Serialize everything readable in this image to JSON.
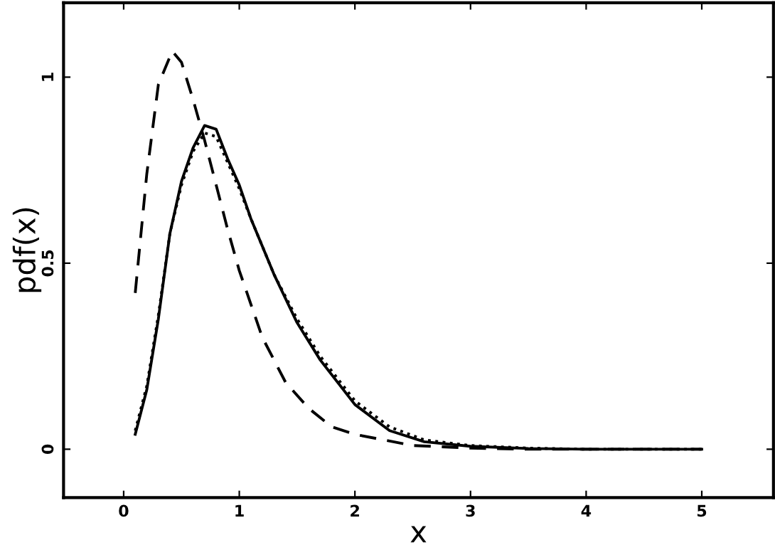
{
  "chart_data": {
    "type": "line",
    "xlabel": "x",
    "ylabel": "pdf(x)",
    "xlim": [
      -0.52,
      5.62
    ],
    "ylim": [
      -0.13,
      1.2
    ],
    "xticks": [
      0,
      1,
      2,
      3,
      4,
      5
    ],
    "yticks": [
      0,
      0.5,
      1
    ],
    "marker": "none",
    "series": [
      {
        "color": "#000000",
        "line_style": "solid",
        "x": [
          0.1,
          0.2,
          0.3,
          0.4,
          0.5,
          0.6,
          0.7,
          0.8,
          0.9,
          1.0,
          1.1,
          1.3,
          1.5,
          1.7,
          2.0,
          2.3,
          2.6,
          3.0,
          3.5,
          4.0,
          5.0
        ],
        "values": [
          0.04,
          0.16,
          0.35,
          0.58,
          0.72,
          0.81,
          0.87,
          0.86,
          0.78,
          0.71,
          0.62,
          0.47,
          0.34,
          0.24,
          0.12,
          0.05,
          0.02,
          0.008,
          0.002,
          0.0,
          0.0
        ]
      },
      {
        "color": "#000000",
        "line_style": "dotted",
        "x": [
          0.1,
          0.2,
          0.3,
          0.4,
          0.5,
          0.6,
          0.7,
          0.8,
          0.9,
          1.0,
          1.1,
          1.3,
          1.5,
          1.7,
          2.0,
          2.3,
          2.6,
          3.0,
          3.5,
          4.0,
          5.0
        ],
        "values": [
          0.05,
          0.17,
          0.36,
          0.58,
          0.71,
          0.8,
          0.85,
          0.84,
          0.77,
          0.7,
          0.62,
          0.47,
          0.35,
          0.25,
          0.13,
          0.06,
          0.025,
          0.01,
          0.003,
          0.0,
          0.0
        ]
      },
      {
        "color": "#000000",
        "line_style": "dashed",
        "x": [
          0.1,
          0.2,
          0.3,
          0.42,
          0.5,
          0.6,
          0.7,
          0.8,
          0.9,
          1.0,
          1.2,
          1.4,
          1.6,
          1.8,
          2.0,
          2.5,
          3.0,
          3.5,
          4.0,
          5.0
        ],
        "values": [
          0.42,
          0.74,
          0.98,
          1.07,
          1.04,
          0.94,
          0.83,
          0.71,
          0.59,
          0.48,
          0.3,
          0.18,
          0.11,
          0.06,
          0.04,
          0.01,
          0.003,
          0.0,
          0.0,
          0.0
        ]
      }
    ]
  }
}
